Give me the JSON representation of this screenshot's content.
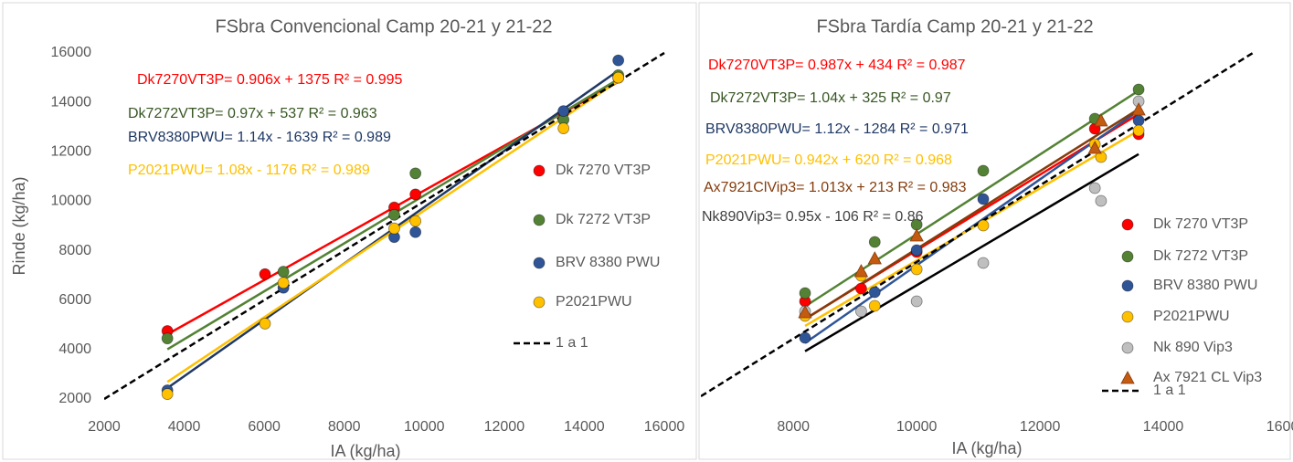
{
  "chart_data": [
    {
      "type": "scatter",
      "title": "FSbra Convencional Camp 20-21 y 21-22",
      "x_label": "IA (kg/ha)",
      "y_label": "Rinde (kg/ha)",
      "xlim": [
        2000,
        16000
      ],
      "ylim": [
        2000,
        16000
      ],
      "xticks": [
        2000,
        4000,
        6000,
        8000,
        10000,
        12000,
        14000,
        16000
      ],
      "yticks": [
        2000,
        4000,
        6000,
        8000,
        10000,
        12000,
        14000,
        16000
      ],
      "series": [
        {
          "name": "Dk 7270 VT3P",
          "color": "#ff0000",
          "marker": "circle",
          "x": [
            3580,
            6020,
            9250,
            9780,
            13480,
            14850
          ],
          "values": [
            4750,
            7050,
            9750,
            10280,
            13600,
            15000
          ],
          "trend": {
            "color": "#ff0000",
            "x": [
              3580,
              14850
            ],
            "values": [
              4618,
              14829
            ]
          }
        },
        {
          "name": "Dk 7272 VT3P",
          "color": "#548235",
          "marker": "circle",
          "x": [
            3580,
            6480,
            9250,
            9780,
            13480,
            14850
          ],
          "values": [
            4450,
            7150,
            9450,
            11130,
            13300,
            15100
          ],
          "trend": {
            "color": "#548235",
            "x": [
              3580,
              14850
            ],
            "values": [
              4010,
              14941
            ]
          }
        },
        {
          "name": "BRV 8380 PWU",
          "color": "#2f5597",
          "marker": "circle",
          "x": [
            3580,
            6480,
            9250,
            9780,
            13480,
            14850
          ],
          "values": [
            2350,
            6500,
            8550,
            8750,
            13650,
            15700
          ],
          "trend": {
            "color": "#1f3864",
            "x": [
              3580,
              14850
            ],
            "values": [
              2442,
              15290
            ]
          }
        },
        {
          "name": "P2021PWU",
          "color": "#ffc000",
          "marker": "circle",
          "x": [
            3580,
            6020,
            6480,
            9250,
            9780,
            13480,
            14850
          ],
          "values": [
            2200,
            5050,
            6700,
            8900,
            9200,
            12950,
            15000
          ],
          "trend": {
            "color": "#ffc000",
            "x": [
              3580,
              14850
            ],
            "values": [
              2690,
              14862
            ]
          }
        },
        {
          "name": "1 a 1",
          "color": "#000000",
          "line_style": "dashed",
          "x": [
            2000,
            16000
          ],
          "values": [
            2000,
            16000
          ]
        }
      ],
      "annotations": [
        {
          "text": "Dk7270VT3P= 0.906x + 1375 R² = 0.995",
          "color": "#ff0000"
        },
        {
          "text": "Dk7272VT3P= 0.97x + 537 R² = 0.963",
          "color": "#375623"
        },
        {
          "text": "BRV8380PWU= 1.14x - 1639 R² = 0.989",
          "color": "#1f3864"
        },
        {
          "text": "P2021PWU= 1.08x - 1176 R² = 0.989",
          "color": "#ffc000"
        }
      ]
    },
    {
      "type": "scatter",
      "title": "FSbra Tardía Camp 20-21 y 21-22",
      "x_label": "IA (kg/ha)",
      "xlim": [
        6500,
        16000
      ],
      "ylim": [
        6000,
        16000
      ],
      "xticks": [
        8000,
        10000,
        12000,
        14000,
        16000
      ],
      "series": [
        {
          "name": "Dk 7270 VT3P",
          "color": "#ff0000",
          "marker": "circle",
          "x": [
            8190,
            9100,
            10000,
            12890,
            13600
          ],
          "values": [
            8976,
            9310,
            10262,
            13476,
            13333
          ],
          "trend": {
            "color": "#ff0000",
            "x": [
              8190,
              13600
            ],
            "values": [
              8518,
              13857
            ]
          }
        },
        {
          "name": "Dk 7272 VT3P",
          "color": "#548235",
          "marker": "circle",
          "x": [
            8190,
            9320,
            10000,
            11080,
            12890,
            13600
          ],
          "values": [
            9190,
            10524,
            10976,
            12381,
            13738,
            14500
          ],
          "trend": {
            "color": "#548235",
            "x": [
              8190,
              13600
            ],
            "values": [
              8843,
              14469
            ]
          }
        },
        {
          "name": "BRV 8380 PWU",
          "color": "#2f5597",
          "marker": "circle",
          "x": [
            8190,
            9320,
            10000,
            11080,
            13600
          ],
          "values": [
            8024,
            9214,
            10310,
            11643,
            13690
          ],
          "trend": {
            "color": "#2f5597",
            "x": [
              8190,
              13600
            ],
            "values": [
              7889,
              13948
            ]
          }
        },
        {
          "name": "P2021PWU",
          "color": "#ffc000",
          "marker": "circle",
          "x": [
            8190,
            9100,
            9320,
            10000,
            11080,
            12890,
            12990,
            13600
          ],
          "values": [
            8595,
            9643,
            8857,
            9810,
            10952,
            13071,
            12738,
            13429
          ],
          "trend": {
            "color": "#ffc000",
            "x": [
              8190,
              13600
            ],
            "values": [
              8335,
              13431
            ]
          }
        },
        {
          "name": "Nk 890 Vip3",
          "color": "#bfbfbf",
          "marker": "circle",
          "x": [
            8190,
            9100,
            10000,
            11080,
            12890,
            12990,
            13600
          ],
          "values": [
            8714,
            8714,
            8976,
            9976,
            11929,
            11595,
            14190
          ],
          "trend": {
            "color": "#000000",
            "x": [
              8190,
              13600
            ],
            "values": [
              7675,
              12814
            ]
          }
        },
        {
          "name": "Ax 7921 CL Vip3",
          "color": "#c55a11",
          "marker": "triangle",
          "x": [
            8190,
            9100,
            9320,
            10000,
            12890,
            12990,
            13600
          ],
          "values": [
            8690,
            9762,
            10095,
            10690,
            12976,
            13690,
            13976
          ],
          "trend": {
            "color": "#843c0c",
            "x": [
              8190,
              13600
            ],
            "values": [
              8509,
              13990
            ]
          }
        },
        {
          "name": "1 a 1",
          "color": "#000000",
          "line_style": "dashed",
          "x": [
            6500,
            15450
          ],
          "values": [
            6500,
            15450
          ]
        }
      ],
      "annotations": [
        {
          "text": "Dk7270VT3P= 0.987x + 434 R² = 0.987",
          "color": "#ff0000"
        },
        {
          "text": "Dk7272VT3P= 1.04x + 325 R² = 0.97",
          "color": "#375623"
        },
        {
          "text": "BRV8380PWU= 1.12x - 1284 R² = 0.971",
          "color": "#1f3864"
        },
        {
          "text": "P2021PWU= 0.942x + 620 R² = 0.968",
          "color": "#ffc000"
        },
        {
          "text": "Ax7921ClVip3= 1.013x + 213 R² = 0.983",
          "color": "#843c0c"
        },
        {
          "text": "Nk890Vip3= 0.95x - 106 R² = 0.86",
          "color": "#404040"
        }
      ]
    }
  ]
}
